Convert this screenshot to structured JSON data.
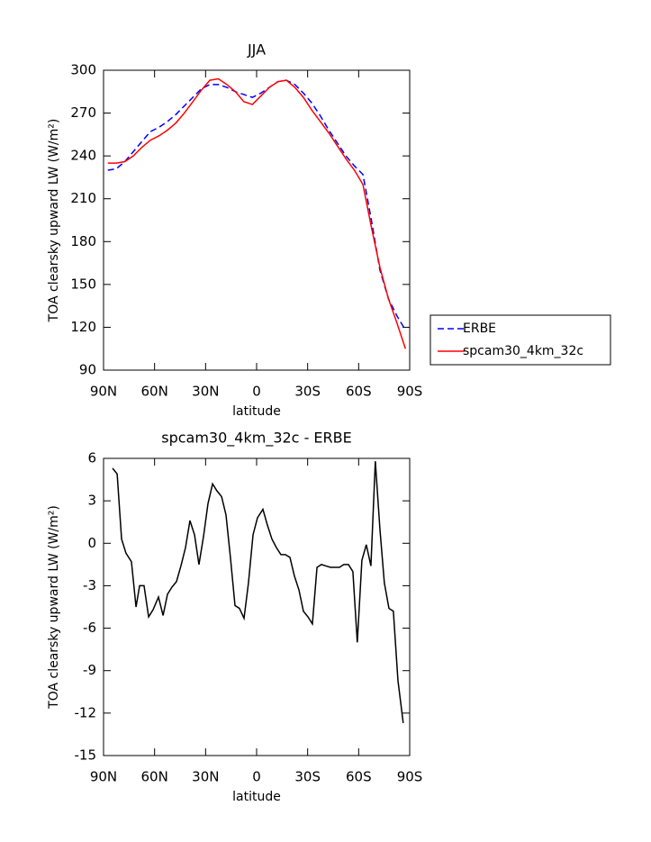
{
  "chart_data": [
    {
      "type": "line",
      "title": "JJA",
      "x_label": "latitude",
      "y_label": "TOA clearsky upward LW (W/m²)",
      "x": [
        87.5,
        82.5,
        77.5,
        72.5,
        67.5,
        62.5,
        57.5,
        52.5,
        47.5,
        42.5,
        37.5,
        32.5,
        27.5,
        22.5,
        17.5,
        12.5,
        7.5,
        2.5,
        -2.5,
        -7.5,
        -12.5,
        -17.5,
        -22.5,
        -27.5,
        -32.5,
        -37.5,
        -42.5,
        -47.5,
        -52.5,
        -57.5,
        -62.5,
        -67.5,
        -72.5,
        -77.5,
        -82.5,
        -87.5
      ],
      "series": [
        {
          "name": "ERBE",
          "color": "#0000ff",
          "dashed": true,
          "values": [
            230,
            231,
            236,
            243,
            250,
            257,
            260,
            264,
            269,
            275,
            281,
            287,
            290,
            290,
            288,
            285,
            283,
            281,
            284,
            288,
            292,
            293,
            290,
            284,
            277,
            268,
            258,
            249,
            240,
            233,
            227,
            195,
            160,
            140,
            128,
            118
          ]
        },
        {
          "name": "spcam30_4km_32c",
          "color": "#ff0000",
          "dashed": false,
          "values": [
            235,
            235,
            236,
            240,
            246,
            251,
            254,
            258,
            263,
            270,
            278,
            286,
            293,
            294,
            290,
            285,
            278,
            276,
            282,
            288,
            292,
            293,
            288,
            281,
            272,
            264,
            256,
            247,
            238,
            230,
            220,
            190,
            162,
            140,
            123,
            105
          ]
        }
      ],
      "xlim": [
        90,
        -90
      ],
      "xticks": [
        {
          "value": 90,
          "label": "90N"
        },
        {
          "value": 60,
          "label": "60N"
        },
        {
          "value": 30,
          "label": "30N"
        },
        0,
        {
          "value": -30,
          "label": "30S"
        },
        {
          "value": -60,
          "label": "60S"
        },
        {
          "value": -90,
          "label": "90S"
        }
      ],
      "ylim": [
        90,
        300
      ],
      "yticks": [
        90,
        120,
        150,
        180,
        210,
        240,
        270,
        300
      ],
      "legend": "right"
    },
    {
      "type": "line",
      "title": "spcam30_4km_32c - ERBE",
      "x_label": "latitude",
      "y_label": "TOA clearsky upward LW (W/m²)",
      "x": [
        84.7,
        82,
        79.4,
        76.8,
        73.6,
        70.9,
        68.8,
        66.2,
        63.5,
        60.9,
        57.7,
        55,
        52.4,
        49.8,
        47.1,
        44.5,
        41.8,
        39.2,
        36.5,
        33.9,
        31.2,
        28.6,
        25.9,
        23.3,
        20.6,
        18,
        15.4,
        12.7,
        10.1,
        7.4,
        4.8,
        2.1,
        -0.5,
        -3.7,
        -6.3,
        -9,
        -11.6,
        -14.3,
        -16.9,
        -19.6,
        -22.2,
        -24.9,
        -27.5,
        -30.2,
        -32.8,
        -35.5,
        -38.1,
        -40.7,
        -43.4,
        -46,
        -48.7,
        -51.3,
        -54,
        -56.6,
        -59.2,
        -61.9,
        -64.5,
        -67.2,
        -69.8,
        -72.5,
        -75.1,
        -77.8,
        -80.4,
        -83.1,
        -86.2
      ],
      "values": [
        5.3,
        4.9,
        0.3,
        -0.7,
        -1.3,
        -4.5,
        -3.0,
        -3.0,
        -5.2,
        -4.7,
        -3.8,
        -5.1,
        -3.6,
        -3.1,
        -2.7,
        -1.6,
        -0.3,
        1.6,
        0.6,
        -1.5,
        0.5,
        2.8,
        4.2,
        3.7,
        3.3,
        2.0,
        -1.0,
        -4.4,
        -4.6,
        -5.3,
        -2.8,
        0.6,
        1.8,
        2.4,
        1.3,
        0.3,
        -0.3,
        -0.8,
        -0.8,
        -1.0,
        -2.3,
        -3.3,
        -4.8,
        -5.2,
        -5.7,
        -1.7,
        -1.5,
        -1.6,
        -1.7,
        -1.7,
        -1.7,
        -1.5,
        -1.5,
        -2.0,
        -7.0,
        -1.2,
        -0.1,
        -1.6,
        5.8,
        1.0,
        -2.8,
        -4.6,
        -4.8,
        -9.7,
        -12.7
      ],
      "color": "#000000",
      "xlim": [
        90,
        -90
      ],
      "xticks": [
        {
          "value": 90,
          "label": "90N"
        },
        {
          "value": 60,
          "label": "60N"
        },
        {
          "value": 30,
          "label": "30N"
        },
        0,
        {
          "value": -30,
          "label": "30S"
        },
        {
          "value": -60,
          "label": "60S"
        },
        {
          "value": -90,
          "label": "90S"
        }
      ],
      "ylim": [
        -15,
        6
      ],
      "yticks": [
        -15,
        -12,
        -9,
        -6,
        -3,
        0,
        3,
        6
      ]
    }
  ]
}
